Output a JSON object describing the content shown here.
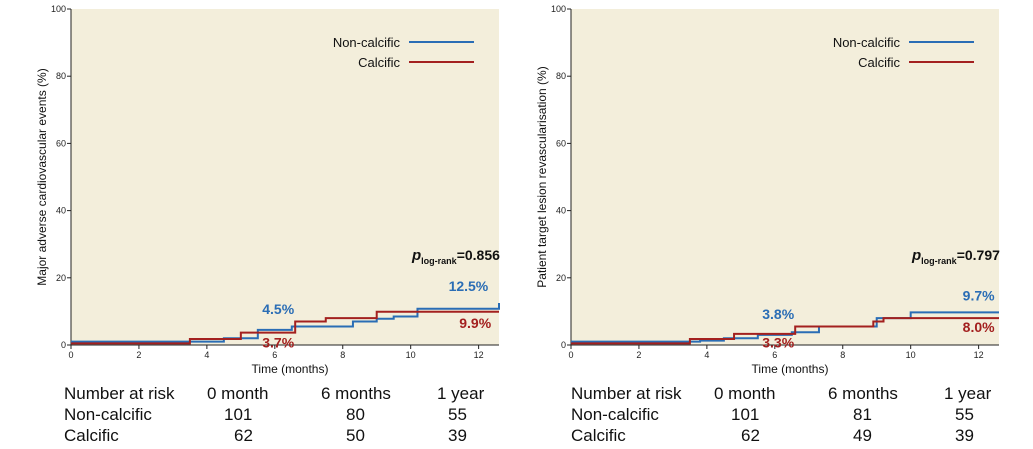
{
  "colors": {
    "non_calcific": "#2a6db5",
    "calcific": "#a3201f",
    "background": "#f3eedb"
  },
  "chart_data": [
    {
      "type": "line",
      "step": true,
      "xlabel": "Time (months)",
      "ylabel": "Major adverse cardiovascular events (%)",
      "xlim": [
        0,
        12.6
      ],
      "ylim": [
        0,
        100
      ],
      "xticks": [
        0,
        2,
        4,
        6,
        8,
        10,
        12
      ],
      "yticks": [
        0,
        20,
        40,
        60,
        80,
        100
      ],
      "xtick_labels": [
        "0",
        "2",
        "4",
        "6",
        "8",
        "10",
        "12"
      ],
      "ytick_labels": [
        "0",
        "20",
        "40",
        "60",
        "80",
        "100"
      ],
      "legend_position": "top-right",
      "p_value": {
        "prefix": "p",
        "subscript": "log-rank",
        "text": "=0.856"
      },
      "series": [
        {
          "name": "Non-calcific",
          "color": "#2a6db5",
          "x": [
            0,
            4.5,
            5.5,
            6.5,
            7.5,
            8.3,
            9.0,
            9.5,
            10.2,
            11.0,
            12.6
          ],
          "y": [
            1.0,
            2.0,
            4.5,
            5.5,
            5.5,
            7.0,
            7.8,
            8.5,
            10.8,
            10.8,
            12.5
          ]
        },
        {
          "name": "Calcific",
          "color": "#a3201f",
          "x": [
            0,
            3.5,
            5.0,
            6.6,
            7.5,
            9.0,
            12.6
          ],
          "y": [
            0.5,
            1.8,
            3.7,
            7.0,
            8.0,
            9.9,
            9.9
          ]
        }
      ],
      "annotations": [
        {
          "text": "4.5%",
          "color": "#2a6db5",
          "x": 6.1,
          "y": 9.3
        },
        {
          "text": "3.7%",
          "color": "#a3201f",
          "x": 6.1,
          "y": -0.8
        },
        {
          "text": "12.5%",
          "color": "#2a6db5",
          "x": 11.7,
          "y": 16.0
        },
        {
          "text": "9.9%",
          "color": "#a3201f",
          "x": 11.9,
          "y": 5.0
        }
      ],
      "number_at_risk": {
        "header": [
          "Number at risk",
          "0 month",
          "6 months",
          "1 year"
        ],
        "rows": [
          {
            "label": "Non-calcific",
            "values": [
              "101",
              "80",
              "55"
            ]
          },
          {
            "label": "Calcific",
            "values": [
              "62",
              "50",
              "39"
            ]
          }
        ]
      }
    },
    {
      "type": "line",
      "step": true,
      "xlabel": "Time (months)",
      "ylabel": "Patient target lesion revascularisation (%)",
      "xlim": [
        0,
        12.6
      ],
      "ylim": [
        0,
        100
      ],
      "xticks": [
        0,
        2,
        4,
        6,
        8,
        10,
        12
      ],
      "yticks": [
        0,
        20,
        40,
        60,
        80,
        100
      ],
      "xtick_labels": [
        "0",
        "2",
        "4",
        "6",
        "8",
        "10",
        "12"
      ],
      "ytick_labels": [
        "0",
        "20",
        "40",
        "60",
        "80",
        "100"
      ],
      "legend_position": "top-right",
      "p_value": {
        "prefix": "p",
        "subscript": "log-rank",
        "text": "=0.797"
      },
      "series": [
        {
          "name": "Non-calcific",
          "color": "#2a6db5",
          "x": [
            0,
            3.8,
            4.5,
            5.5,
            6.5,
            7.3,
            8.8,
            9.0,
            10.0,
            12.6
          ],
          "y": [
            1.0,
            1.3,
            2.0,
            3.0,
            3.8,
            5.5,
            5.5,
            8.0,
            9.7,
            9.7
          ]
        },
        {
          "name": "Calcific",
          "color": "#a3201f",
          "x": [
            0,
            3.5,
            4.8,
            6.6,
            8.9,
            9.2,
            12.6
          ],
          "y": [
            0.5,
            1.8,
            3.3,
            5.5,
            7.0,
            8.0,
            8.0
          ]
        }
      ],
      "annotations": [
        {
          "text": "3.8%",
          "color": "#2a6db5",
          "x": 6.1,
          "y": 7.8
        },
        {
          "text": "3.3%",
          "color": "#a3201f",
          "x": 6.1,
          "y": -0.8
        },
        {
          "text": "9.7%",
          "color": "#2a6db5",
          "x": 12.0,
          "y": 13.3
        },
        {
          "text": "8.0%",
          "color": "#a3201f",
          "x": 12.0,
          "y": 3.8
        }
      ],
      "number_at_risk": {
        "header": [
          "Number at risk",
          "0 month",
          "6 months",
          "1 year"
        ],
        "rows": [
          {
            "label": "Non-calcific",
            "values": [
              "101",
              "81",
              "55"
            ]
          },
          {
            "label": "Calcific",
            "values": [
              "62",
              "49",
              "39"
            ]
          }
        ]
      }
    }
  ]
}
